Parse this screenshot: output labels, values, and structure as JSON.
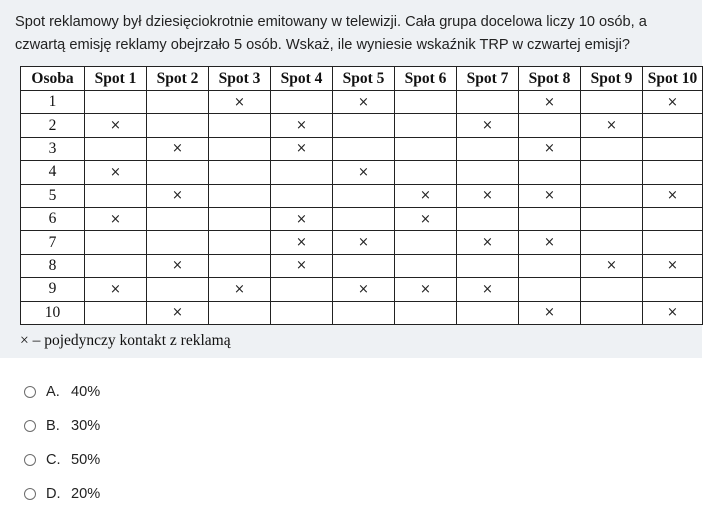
{
  "question": {
    "text": "Spot reklamowy był dziesięciokrotnie emitowany w telewizji. Cała grupa docelowa liczy 10 osób, a czwartą emisję reklamy obejrzało 5 osób. Wskaż, ile wyniesie wskaźnik TRP w czwartej emisji?"
  },
  "table": {
    "headers": [
      "Osoba",
      "Spot 1",
      "Spot 2",
      "Spot 3",
      "Spot 4",
      "Spot 5",
      "Spot 6",
      "Spot 7",
      "Spot 8",
      "Spot 9",
      "Spot 10"
    ],
    "mark_symbol": "×",
    "rows": [
      {
        "person": "1",
        "marks": [
          0,
          0,
          1,
          0,
          1,
          0,
          0,
          1,
          0,
          1
        ]
      },
      {
        "person": "2",
        "marks": [
          1,
          0,
          0,
          1,
          0,
          0,
          1,
          0,
          1,
          0
        ]
      },
      {
        "person": "3",
        "marks": [
          0,
          1,
          0,
          1,
          0,
          0,
          0,
          1,
          0,
          0
        ]
      },
      {
        "person": "4",
        "marks": [
          1,
          0,
          0,
          0,
          1,
          0,
          0,
          0,
          0,
          0
        ]
      },
      {
        "person": "5",
        "marks": [
          0,
          1,
          0,
          0,
          0,
          1,
          1,
          1,
          0,
          1
        ]
      },
      {
        "person": "6",
        "marks": [
          1,
          0,
          0,
          1,
          0,
          1,
          0,
          0,
          0,
          0
        ]
      },
      {
        "person": "7",
        "marks": [
          0,
          0,
          0,
          1,
          1,
          0,
          1,
          1,
          0,
          0
        ]
      },
      {
        "person": "8",
        "marks": [
          0,
          1,
          0,
          1,
          0,
          0,
          0,
          0,
          1,
          1
        ]
      },
      {
        "person": "9",
        "marks": [
          1,
          0,
          1,
          0,
          1,
          1,
          1,
          0,
          0,
          0
        ]
      },
      {
        "person": "10",
        "marks": [
          0,
          1,
          0,
          0,
          0,
          0,
          0,
          1,
          0,
          1
        ]
      }
    ],
    "legend": "× – pojedynczy kontakt z reklamą"
  },
  "answers": [
    {
      "letter": "A.",
      "value": "40%"
    },
    {
      "letter": "B.",
      "value": "30%"
    },
    {
      "letter": "C.",
      "value": "50%"
    },
    {
      "letter": "D.",
      "value": "20%"
    }
  ]
}
